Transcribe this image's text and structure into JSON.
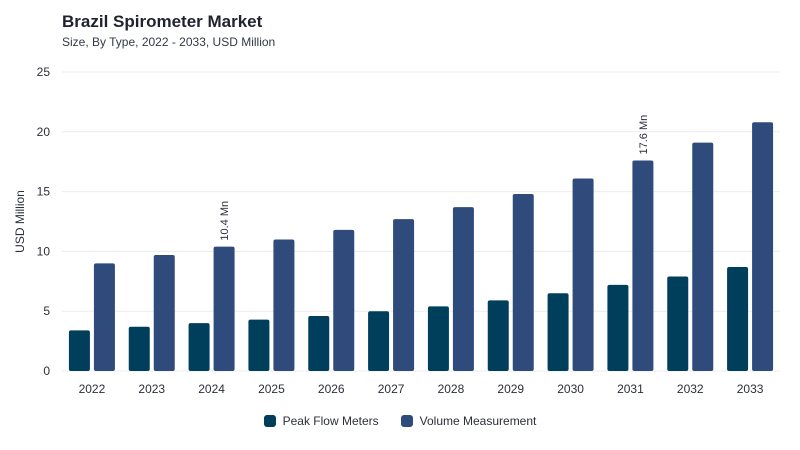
{
  "header": {
    "title": "Brazil Spirometer Market",
    "subtitle": "Size, By Type, 2022 - 2033, USD Million"
  },
  "colors": {
    "peak_flow": "#003f5c",
    "volume": "#2f4b7c",
    "grid": "#ececec",
    "axis_text": "#2b2f38"
  },
  "chart_data": {
    "type": "bar",
    "title": "Brazil Spirometer Market",
    "subtitle": "Size, By Type, 2022 - 2033, USD Million",
    "xlabel": "",
    "ylabel": "USD Million",
    "ylim": [
      0,
      25
    ],
    "yticks": [
      0,
      5,
      10,
      15,
      20,
      25
    ],
    "categories": [
      "2022",
      "2023",
      "2024",
      "2025",
      "2026",
      "2027",
      "2028",
      "2029",
      "2030",
      "2031",
      "2032",
      "2033"
    ],
    "series": [
      {
        "name": "Peak Flow Meters",
        "values": [
          3.4,
          3.7,
          4.0,
          4.3,
          4.6,
          5.0,
          5.4,
          5.9,
          6.5,
          7.2,
          7.9,
          8.7
        ]
      },
      {
        "name": "Volume Measurement",
        "values": [
          9.0,
          9.7,
          10.4,
          11.0,
          11.8,
          12.7,
          13.7,
          14.8,
          16.1,
          17.6,
          19.1,
          20.8
        ]
      }
    ],
    "annotations": [
      {
        "category": "2024",
        "series": "Volume Measurement",
        "text": "10.4 Mn"
      },
      {
        "category": "2031",
        "series": "Volume Measurement",
        "text": "17.6 Mn"
      }
    ],
    "grid": true,
    "legend_position": "bottom"
  }
}
